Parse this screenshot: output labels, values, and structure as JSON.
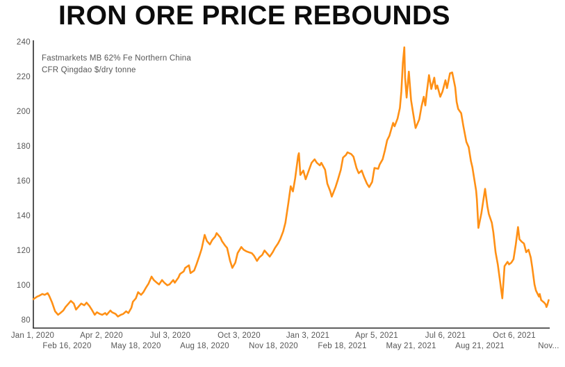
{
  "title": "IRON ORE PRICE REBOUNDS",
  "annotation": {
    "line1": "Fastmarkets MB 62% Fe Northern China",
    "line2": "CFR Qingdao $/dry tonne"
  },
  "colors": {
    "line": "#ff9015",
    "axis": "#2a2a2a",
    "label": "#565656",
    "title": "#0c0c0c",
    "background": "#ffffff"
  },
  "chart_data": {
    "type": "line",
    "title": "IRON ORE PRICE REBOUNDS",
    "series_label": "Fastmarkets MB 62% Fe Northern China CFR Qingdao $/dry tonne",
    "ylabel": "$/dry tonne",
    "ylim": [
      80,
      240
    ],
    "x_range": [
      "2020-01-01",
      "2021-11-21"
    ],
    "grid": false,
    "legend": "none",
    "y_ticks": [
      240,
      220,
      200,
      180,
      160,
      140,
      120,
      100,
      80
    ],
    "x_ticks_row1": [
      {
        "label": "Jan 1, 2020",
        "date": "2020-01-01"
      },
      {
        "label": "Apr 2, 2020",
        "date": "2020-04-02"
      },
      {
        "label": "Jul 3, 2020",
        "date": "2020-07-03"
      },
      {
        "label": "Oct 3, 2020",
        "date": "2020-10-03"
      },
      {
        "label": "Jan 3, 2021",
        "date": "2021-01-03"
      },
      {
        "label": "Apr 5, 2021",
        "date": "2021-04-05"
      },
      {
        "label": "Jul 6, 2021",
        "date": "2021-07-06"
      },
      {
        "label": "Oct 6, 2021",
        "date": "2021-10-06"
      }
    ],
    "x_ticks_row2": [
      {
        "label": "Feb 16, 2020",
        "date": "2020-02-16"
      },
      {
        "label": "May 18, 2020",
        "date": "2020-05-18"
      },
      {
        "label": "Aug 18, 2020",
        "date": "2020-08-18"
      },
      {
        "label": "Nov 18, 2020",
        "date": "2020-11-18"
      },
      {
        "label": "Feb 18, 2021",
        "date": "2021-02-18"
      },
      {
        "label": "May 21, 2021",
        "date": "2021-05-21"
      },
      {
        "label": "Aug 21, 2021",
        "date": "2021-08-21"
      },
      {
        "label": "Nov...",
        "date": "2021-11-21"
      }
    ],
    "points": [
      [
        "2020-01-02",
        92.5
      ],
      [
        "2020-01-07",
        94
      ],
      [
        "2020-01-10",
        94.5
      ],
      [
        "2020-01-14",
        95.5
      ],
      [
        "2020-01-17",
        95
      ],
      [
        "2020-01-21",
        96
      ],
      [
        "2020-01-23",
        94.5
      ],
      [
        "2020-01-27",
        90.5
      ],
      [
        "2020-01-31",
        85.5
      ],
      [
        "2020-02-04",
        83.5
      ],
      [
        "2020-02-07",
        84.5
      ],
      [
        "2020-02-11",
        86
      ],
      [
        "2020-02-14",
        88
      ],
      [
        "2020-02-18",
        90
      ],
      [
        "2020-02-21",
        91.5
      ],
      [
        "2020-02-25",
        90
      ],
      [
        "2020-02-28",
        86.5
      ],
      [
        "2020-03-03",
        88.5
      ],
      [
        "2020-03-06",
        90
      ],
      [
        "2020-03-10",
        89
      ],
      [
        "2020-03-13",
        90.5
      ],
      [
        "2020-03-17",
        88.5
      ],
      [
        "2020-03-20",
        86.5
      ],
      [
        "2020-03-24",
        83.5
      ],
      [
        "2020-03-27",
        85
      ],
      [
        "2020-03-31",
        84
      ],
      [
        "2020-04-03",
        83.5
      ],
      [
        "2020-04-07",
        84.5
      ],
      [
        "2020-04-09",
        83.5
      ],
      [
        "2020-04-14",
        86
      ],
      [
        "2020-04-16",
        85
      ],
      [
        "2020-04-21",
        84
      ],
      [
        "2020-04-24",
        82.5
      ],
      [
        "2020-04-28",
        83.5
      ],
      [
        "2020-05-01",
        84
      ],
      [
        "2020-05-05",
        85.5
      ],
      [
        "2020-05-08",
        84.5
      ],
      [
        "2020-05-12",
        87.5
      ],
      [
        "2020-05-14",
        91
      ],
      [
        "2020-05-18",
        93
      ],
      [
        "2020-05-21",
        96.5
      ],
      [
        "2020-05-25",
        95
      ],
      [
        "2020-05-28",
        96.5
      ],
      [
        "2020-06-01",
        99.5
      ],
      [
        "2020-06-04",
        101.5
      ],
      [
        "2020-06-08",
        105.5
      ],
      [
        "2020-06-11",
        103.5
      ],
      [
        "2020-06-15",
        102
      ],
      [
        "2020-06-18",
        101
      ],
      [
        "2020-06-22",
        103.5
      ],
      [
        "2020-06-25",
        102
      ],
      [
        "2020-06-29",
        100.5
      ],
      [
        "2020-07-02",
        101
      ],
      [
        "2020-07-07",
        103.5
      ],
      [
        "2020-07-09",
        102
      ],
      [
        "2020-07-14",
        105
      ],
      [
        "2020-07-16",
        107
      ],
      [
        "2020-07-21",
        108.5
      ],
      [
        "2020-07-23",
        110.5
      ],
      [
        "2020-07-28",
        112
      ],
      [
        "2020-07-30",
        107.5
      ],
      [
        "2020-08-04",
        109
      ],
      [
        "2020-08-07",
        112.5
      ],
      [
        "2020-08-11",
        117.5
      ],
      [
        "2020-08-14",
        121.5
      ],
      [
        "2020-08-18",
        129.5
      ],
      [
        "2020-08-21",
        126
      ],
      [
        "2020-08-25",
        124
      ],
      [
        "2020-08-28",
        126.5
      ],
      [
        "2020-09-01",
        128.5
      ],
      [
        "2020-09-03",
        130.5
      ],
      [
        "2020-09-08",
        128
      ],
      [
        "2020-09-10",
        126
      ],
      [
        "2020-09-14",
        123.5
      ],
      [
        "2020-09-17",
        122
      ],
      [
        "2020-09-21",
        114.5
      ],
      [
        "2020-09-24",
        110.5
      ],
      [
        "2020-09-28",
        113.5
      ],
      [
        "2020-10-01",
        119
      ],
      [
        "2020-10-06",
        122.5
      ],
      [
        "2020-10-09",
        121
      ],
      [
        "2020-10-13",
        120
      ],
      [
        "2020-10-16",
        119.5
      ],
      [
        "2020-10-20",
        119
      ],
      [
        "2020-10-23",
        117.5
      ],
      [
        "2020-10-27",
        114.5
      ],
      [
        "2020-10-30",
        116.5
      ],
      [
        "2020-11-03",
        118
      ],
      [
        "2020-11-06",
        120.5
      ],
      [
        "2020-11-10",
        118.5
      ],
      [
        "2020-11-13",
        117
      ],
      [
        "2020-11-17",
        119.5
      ],
      [
        "2020-11-20",
        122
      ],
      [
        "2020-11-24",
        124.5
      ],
      [
        "2020-11-27",
        127
      ],
      [
        "2020-12-01",
        131.5
      ],
      [
        "2020-12-04",
        136.5
      ],
      [
        "2020-12-08",
        148
      ],
      [
        "2020-12-11",
        157.5
      ],
      [
        "2020-12-14",
        154.5
      ],
      [
        "2020-12-17",
        162
      ],
      [
        "2020-12-21",
        175
      ],
      [
        "2020-12-22",
        176.5
      ],
      [
        "2020-12-24",
        164
      ],
      [
        "2020-12-28",
        166.5
      ],
      [
        "2020-12-31",
        161.5
      ],
      [
        "2021-01-05",
        167.5
      ],
      [
        "2021-01-08",
        171
      ],
      [
        "2021-01-12",
        173
      ],
      [
        "2021-01-15",
        171
      ],
      [
        "2021-01-19",
        169.5
      ],
      [
        "2021-01-21",
        171
      ],
      [
        "2021-01-26",
        167
      ],
      [
        "2021-01-29",
        159
      ],
      [
        "2021-02-02",
        154.5
      ],
      [
        "2021-02-04",
        151.5
      ],
      [
        "2021-02-09",
        157
      ],
      [
        "2021-02-12",
        161
      ],
      [
        "2021-02-16",
        167
      ],
      [
        "2021-02-19",
        174
      ],
      [
        "2021-02-23",
        175.5
      ],
      [
        "2021-02-25",
        177
      ],
      [
        "2021-03-02",
        176
      ],
      [
        "2021-03-05",
        174.5
      ],
      [
        "2021-03-09",
        168
      ],
      [
        "2021-03-12",
        165
      ],
      [
        "2021-03-16",
        166.5
      ],
      [
        "2021-03-19",
        163
      ],
      [
        "2021-03-23",
        159
      ],
      [
        "2021-03-26",
        157
      ],
      [
        "2021-03-30",
        160
      ],
      [
        "2021-04-02",
        168
      ],
      [
        "2021-04-07",
        167.5
      ],
      [
        "2021-04-09",
        170
      ],
      [
        "2021-04-13",
        173
      ],
      [
        "2021-04-16",
        178
      ],
      [
        "2021-04-19",
        184
      ],
      [
        "2021-04-22",
        186.5
      ],
      [
        "2021-04-27",
        194
      ],
      [
        "2021-04-29",
        192
      ],
      [
        "2021-05-03",
        196.5
      ],
      [
        "2021-05-06",
        202.5
      ],
      [
        "2021-05-08",
        212
      ],
      [
        "2021-05-10",
        228.5
      ],
      [
        "2021-05-12",
        237.5
      ],
      [
        "2021-05-13",
        220
      ],
      [
        "2021-05-15",
        208.5
      ],
      [
        "2021-05-18",
        223.5
      ],
      [
        "2021-05-21",
        207
      ],
      [
        "2021-05-24",
        199
      ],
      [
        "2021-05-27",
        191
      ],
      [
        "2021-06-01",
        196
      ],
      [
        "2021-06-04",
        203.5
      ],
      [
        "2021-06-07",
        209
      ],
      [
        "2021-06-09",
        204
      ],
      [
        "2021-06-11",
        211.5
      ],
      [
        "2021-06-14",
        221.5
      ],
      [
        "2021-06-17",
        213.5
      ],
      [
        "2021-06-21",
        220
      ],
      [
        "2021-06-23",
        213.5
      ],
      [
        "2021-06-25",
        215.5
      ],
      [
        "2021-06-29",
        209
      ],
      [
        "2021-07-02",
        212
      ],
      [
        "2021-07-06",
        218.5
      ],
      [
        "2021-07-08",
        214
      ],
      [
        "2021-07-12",
        222.5
      ],
      [
        "2021-07-15",
        223
      ],
      [
        "2021-07-19",
        214.5
      ],
      [
        "2021-07-21",
        206
      ],
      [
        "2021-07-23",
        202
      ],
      [
        "2021-07-27",
        199.5
      ],
      [
        "2021-07-30",
        192
      ],
      [
        "2021-08-03",
        183
      ],
      [
        "2021-08-06",
        180
      ],
      [
        "2021-08-09",
        172
      ],
      [
        "2021-08-11",
        168.5
      ],
      [
        "2021-08-13",
        163
      ],
      [
        "2021-08-16",
        155
      ],
      [
        "2021-08-17",
        150
      ],
      [
        "2021-08-19",
        133.5
      ],
      [
        "2021-08-23",
        142
      ],
      [
        "2021-08-26",
        150.5
      ],
      [
        "2021-08-28",
        156
      ],
      [
        "2021-08-31",
        146
      ],
      [
        "2021-09-02",
        141.5
      ],
      [
        "2021-09-06",
        136.5
      ],
      [
        "2021-09-08",
        131
      ],
      [
        "2021-09-11",
        119.5
      ],
      [
        "2021-09-14",
        112.5
      ],
      [
        "2021-09-16",
        106
      ],
      [
        "2021-09-20",
        93
      ],
      [
        "2021-09-23",
        111.5
      ],
      [
        "2021-09-27",
        114
      ],
      [
        "2021-09-29",
        112.5
      ],
      [
        "2021-10-02",
        113.5
      ],
      [
        "2021-10-05",
        115.5
      ],
      [
        "2021-10-08",
        124
      ],
      [
        "2021-10-11",
        134
      ],
      [
        "2021-10-13",
        127
      ],
      [
        "2021-10-16",
        125.5
      ],
      [
        "2021-10-19",
        124.5
      ],
      [
        "2021-10-22",
        119.5
      ],
      [
        "2021-10-25",
        121
      ],
      [
        "2021-10-28",
        116.5
      ],
      [
        "2021-10-30",
        111
      ],
      [
        "2021-11-02",
        101
      ],
      [
        "2021-11-04",
        97.5
      ],
      [
        "2021-11-08",
        94
      ],
      [
        "2021-11-09",
        95.5
      ],
      [
        "2021-11-11",
        92
      ],
      [
        "2021-11-15",
        90.5
      ],
      [
        "2021-11-17",
        89.5
      ],
      [
        "2021-11-18",
        88
      ],
      [
        "2021-11-19",
        89
      ],
      [
        "2021-11-21",
        92
      ]
    ]
  }
}
